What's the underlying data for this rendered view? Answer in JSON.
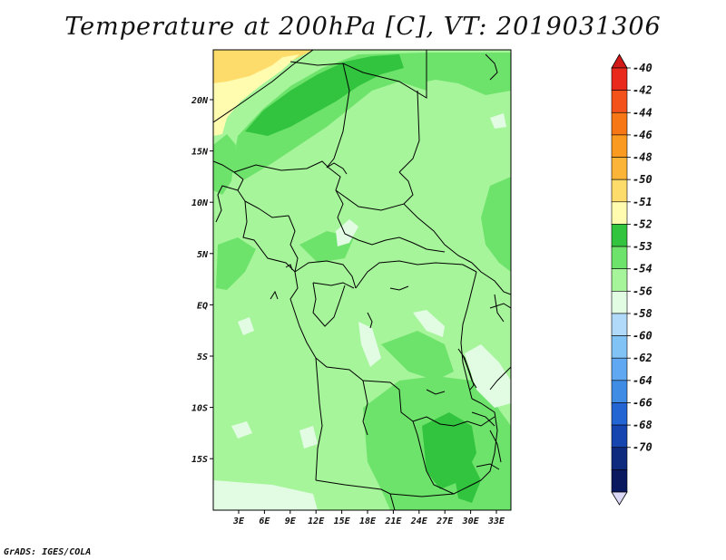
{
  "title": "Temperature at 200hPa [C], VT: 2019031306",
  "credit": "GrADS: IGES/COLA",
  "map": {
    "lat_labels": [
      "20N",
      "15N",
      "10N",
      "5N",
      "EQ",
      "5S",
      "10S",
      "15S"
    ],
    "lon_labels": [
      "3E",
      "6E",
      "9E",
      "12E",
      "15E",
      "18E",
      "21E",
      "24E",
      "27E",
      "30E",
      "33E"
    ]
  },
  "colorbar": {
    "labels": [
      "-40",
      "-42",
      "-44",
      "-46",
      "-48",
      "-50",
      "-51",
      "-52",
      "-53",
      "-54",
      "-56",
      "-58",
      "-60",
      "-62",
      "-64",
      "-66",
      "-68",
      "-70"
    ],
    "colors": [
      "#e8291c",
      "#f3521a",
      "#f77717",
      "#fb9a21",
      "#fbb437",
      "#fedc6c",
      "#fffcb0",
      "#33c43f",
      "#6ee36c",
      "#a6f59a",
      "#e2fce4",
      "#b0d9fa",
      "#82c3f6",
      "#60a8f1",
      "#3e8ce3",
      "#2465d4",
      "#1645b0",
      "#0e2a7e",
      "#0a1860"
    ],
    "top_color": "#d11a17",
    "bottom_color": "#dbd8f6"
  }
}
